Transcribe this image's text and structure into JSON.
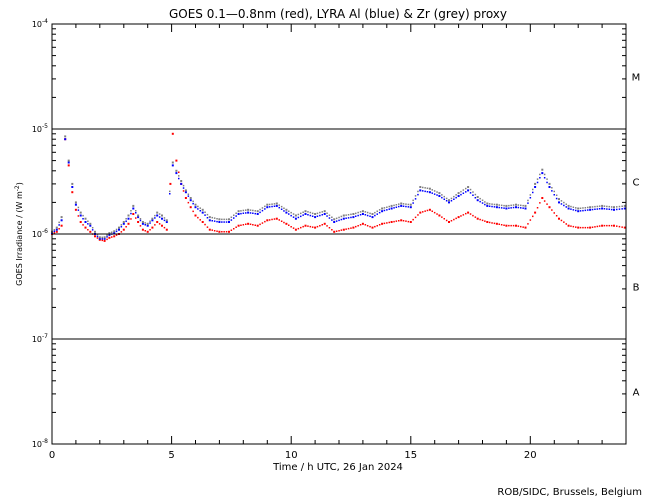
{
  "chart_data": {
    "type": "scatter",
    "title": "GOES 0.1—0.8nm (red), LYRA Al (blue) & Zr (grey) proxy",
    "xlabel": "Time / h UTC, 26 Jan 2024",
    "ylabel": "GOES Irradiance / (W m⁻²)",
    "xlim": [
      0,
      24
    ],
    "ylim": [
      1e-08,
      0.0001
    ],
    "yscale": "log",
    "xticks": [
      0,
      5,
      10,
      15,
      20
    ],
    "yticks": [
      {
        "value": 1e-08,
        "base": "10",
        "exp": "-8"
      },
      {
        "value": 1e-07,
        "base": "10",
        "exp": "-7"
      },
      {
        "value": 1e-06,
        "base": "10",
        "exp": "-6"
      },
      {
        "value": 1e-05,
        "base": "10",
        "exp": "-5"
      },
      {
        "value": 0.0001,
        "base": "10",
        "exp": "-4"
      }
    ],
    "class_lines": [
      1e-07,
      1e-06,
      1e-05
    ],
    "flare_classes": [
      {
        "label": "A",
        "value": 3.16e-08
      },
      {
        "label": "B",
        "value": 3.16e-07
      },
      {
        "label": "C",
        "value": 3.16e-06
      },
      {
        "label": "M",
        "value": 3.16e-05
      }
    ],
    "credit": "ROB/SIDC, Brussels, Belgium",
    "series": [
      {
        "color": "#ff0000",
        "points": [
          [
            0.0,
            1e-06
          ],
          [
            0.2,
            1.05e-06
          ],
          [
            0.4,
            1.2e-06
          ],
          [
            0.55,
            8e-06
          ],
          [
            0.7,
            4.5e-06
          ],
          [
            0.85,
            2.5e-06
          ],
          [
            1.0,
            1.7e-06
          ],
          [
            1.2,
            1.3e-06
          ],
          [
            1.4,
            1.15e-06
          ],
          [
            1.6,
            1.05e-06
          ],
          [
            1.8,
            9.5e-07
          ],
          [
            2.0,
            8.8e-07
          ],
          [
            2.2,
            8.6e-07
          ],
          [
            2.4,
            9.2e-07
          ],
          [
            2.6,
            9.5e-07
          ],
          [
            2.8,
            1e-06
          ],
          [
            3.0,
            1.1e-06
          ],
          [
            3.2,
            1.25e-06
          ],
          [
            3.4,
            1.55e-06
          ],
          [
            3.6,
            1.3e-06
          ],
          [
            3.8,
            1.1e-06
          ],
          [
            4.0,
            1.05e-06
          ],
          [
            4.2,
            1.15e-06
          ],
          [
            4.4,
            1.3e-06
          ],
          [
            4.6,
            1.2e-06
          ],
          [
            4.8,
            1.1e-06
          ],
          [
            4.95,
            3e-06
          ],
          [
            5.05,
            9e-06
          ],
          [
            5.2,
            5e-06
          ],
          [
            5.4,
            3e-06
          ],
          [
            5.6,
            2.2e-06
          ],
          [
            5.8,
            1.8e-06
          ],
          [
            6.0,
            1.5e-06
          ],
          [
            6.3,
            1.3e-06
          ],
          [
            6.6,
            1.1e-06
          ],
          [
            7.0,
            1.05e-06
          ],
          [
            7.4,
            1.05e-06
          ],
          [
            7.8,
            1.2e-06
          ],
          [
            8.2,
            1.25e-06
          ],
          [
            8.6,
            1.2e-06
          ],
          [
            9.0,
            1.35e-06
          ],
          [
            9.4,
            1.4e-06
          ],
          [
            9.8,
            1.25e-06
          ],
          [
            10.2,
            1.1e-06
          ],
          [
            10.6,
            1.2e-06
          ],
          [
            11.0,
            1.15e-06
          ],
          [
            11.4,
            1.25e-06
          ],
          [
            11.8,
            1.05e-06
          ],
          [
            12.2,
            1.1e-06
          ],
          [
            12.6,
            1.15e-06
          ],
          [
            13.0,
            1.25e-06
          ],
          [
            13.4,
            1.15e-06
          ],
          [
            13.8,
            1.25e-06
          ],
          [
            14.2,
            1.3e-06
          ],
          [
            14.6,
            1.35e-06
          ],
          [
            15.0,
            1.3e-06
          ],
          [
            15.4,
            1.6e-06
          ],
          [
            15.8,
            1.7e-06
          ],
          [
            16.2,
            1.5e-06
          ],
          [
            16.6,
            1.3e-06
          ],
          [
            17.0,
            1.45e-06
          ],
          [
            17.4,
            1.6e-06
          ],
          [
            17.8,
            1.4e-06
          ],
          [
            18.2,
            1.3e-06
          ],
          [
            18.6,
            1.25e-06
          ],
          [
            19.0,
            1.2e-06
          ],
          [
            19.4,
            1.2e-06
          ],
          [
            19.8,
            1.15e-06
          ],
          [
            20.2,
            1.6e-06
          ],
          [
            20.5,
            2.2e-06
          ],
          [
            20.8,
            1.8e-06
          ],
          [
            21.2,
            1.4e-06
          ],
          [
            21.6,
            1.2e-06
          ],
          [
            22.0,
            1.15e-06
          ],
          [
            22.5,
            1.15e-06
          ],
          [
            23.0,
            1.2e-06
          ],
          [
            23.5,
            1.2e-06
          ],
          [
            23.95,
            1.15e-06
          ]
        ]
      },
      {
        "color": "#0000ff",
        "points": [
          [
            0.0,
            1.02e-06
          ],
          [
            0.2,
            1.1e-06
          ],
          [
            0.4,
            1.35e-06
          ],
          [
            0.55,
            8e-06
          ],
          [
            0.7,
            4.8e-06
          ],
          [
            0.85,
            2.8e-06
          ],
          [
            1.0,
            1.9e-06
          ],
          [
            1.2,
            1.5e-06
          ],
          [
            1.4,
            1.3e-06
          ],
          [
            1.6,
            1.2e-06
          ],
          [
            1.8,
            1e-06
          ],
          [
            2.0,
            9e-07
          ],
          [
            2.2,
            9e-07
          ],
          [
            2.4,
            9.8e-07
          ],
          [
            2.6,
            1.02e-06
          ],
          [
            2.8,
            1.1e-06
          ],
          [
            3.0,
            1.25e-06
          ],
          [
            3.2,
            1.4e-06
          ],
          [
            3.4,
            1.75e-06
          ],
          [
            3.6,
            1.45e-06
          ],
          [
            3.8,
            1.25e-06
          ],
          [
            4.0,
            1.2e-06
          ],
          [
            4.2,
            1.35e-06
          ],
          [
            4.4,
            1.5e-06
          ],
          [
            4.6,
            1.4e-06
          ],
          [
            4.8,
            1.3e-06
          ],
          [
            5.05,
            4.5e-06
          ],
          [
            5.2,
            3.8e-06
          ],
          [
            5.4,
            3e-06
          ],
          [
            5.6,
            2.5e-06
          ],
          [
            5.8,
            2.1e-06
          ],
          [
            6.0,
            1.8e-06
          ],
          [
            6.3,
            1.6e-06
          ],
          [
            6.6,
            1.35e-06
          ],
          [
            7.0,
            1.3e-06
          ],
          [
            7.4,
            1.3e-06
          ],
          [
            7.8,
            1.55e-06
          ],
          [
            8.2,
            1.6e-06
          ],
          [
            8.6,
            1.55e-06
          ],
          [
            9.0,
            1.8e-06
          ],
          [
            9.4,
            1.85e-06
          ],
          [
            9.8,
            1.6e-06
          ],
          [
            10.2,
            1.4e-06
          ],
          [
            10.6,
            1.55e-06
          ],
          [
            11.0,
            1.45e-06
          ],
          [
            11.4,
            1.55e-06
          ],
          [
            11.8,
            1.3e-06
          ],
          [
            12.2,
            1.4e-06
          ],
          [
            12.6,
            1.45e-06
          ],
          [
            13.0,
            1.55e-06
          ],
          [
            13.4,
            1.45e-06
          ],
          [
            13.8,
            1.65e-06
          ],
          [
            14.2,
            1.75e-06
          ],
          [
            14.6,
            1.85e-06
          ],
          [
            15.0,
            1.8e-06
          ],
          [
            15.4,
            2.6e-06
          ],
          [
            15.8,
            2.5e-06
          ],
          [
            16.2,
            2.3e-06
          ],
          [
            16.6,
            2e-06
          ],
          [
            17.0,
            2.3e-06
          ],
          [
            17.4,
            2.6e-06
          ],
          [
            17.8,
            2.1e-06
          ],
          [
            18.2,
            1.85e-06
          ],
          [
            18.6,
            1.8e-06
          ],
          [
            19.0,
            1.75e-06
          ],
          [
            19.4,
            1.8e-06
          ],
          [
            19.8,
            1.75e-06
          ],
          [
            20.2,
            2.8e-06
          ],
          [
            20.5,
            3.8e-06
          ],
          [
            20.8,
            2.8e-06
          ],
          [
            21.2,
            2e-06
          ],
          [
            21.6,
            1.75e-06
          ],
          [
            22.0,
            1.65e-06
          ],
          [
            22.5,
            1.7e-06
          ],
          [
            23.0,
            1.75e-06
          ],
          [
            23.5,
            1.7e-06
          ],
          [
            23.95,
            1.75e-06
          ]
        ]
      },
      {
        "color": "#808080",
        "points": [
          [
            0.0,
            1.05e-06
          ],
          [
            0.2,
            1.15e-06
          ],
          [
            0.4,
            1.45e-06
          ],
          [
            0.55,
            8.5e-06
          ],
          [
            0.7,
            5e-06
          ],
          [
            0.85,
            3e-06
          ],
          [
            1.0,
            2e-06
          ],
          [
            1.2,
            1.6e-06
          ],
          [
            1.4,
            1.4e-06
          ],
          [
            1.6,
            1.25e-06
          ],
          [
            1.8,
            1.05e-06
          ],
          [
            2.0,
            9.3e-07
          ],
          [
            2.2,
            9.3e-07
          ],
          [
            2.4,
            1.02e-06
          ],
          [
            2.6,
            1.06e-06
          ],
          [
            2.8,
            1.15e-06
          ],
          [
            3.0,
            1.3e-06
          ],
          [
            3.2,
            1.5e-06
          ],
          [
            3.4,
            1.85e-06
          ],
          [
            3.6,
            1.5e-06
          ],
          [
            3.8,
            1.3e-06
          ],
          [
            4.0,
            1.25e-06
          ],
          [
            4.2,
            1.4e-06
          ],
          [
            4.4,
            1.6e-06
          ],
          [
            4.6,
            1.5e-06
          ],
          [
            4.8,
            1.35e-06
          ],
          [
            5.05,
            4.8e-06
          ],
          [
            5.2,
            4e-06
          ],
          [
            5.4,
            3.2e-06
          ],
          [
            5.6,
            2.6e-06
          ],
          [
            5.8,
            2.2e-06
          ],
          [
            6.0,
            1.9e-06
          ],
          [
            6.3,
            1.7e-06
          ],
          [
            6.6,
            1.45e-06
          ],
          [
            7.0,
            1.38e-06
          ],
          [
            7.4,
            1.38e-06
          ],
          [
            7.8,
            1.65e-06
          ],
          [
            8.2,
            1.7e-06
          ],
          [
            8.6,
            1.65e-06
          ],
          [
            9.0,
            1.9e-06
          ],
          [
            9.4,
            1.95e-06
          ],
          [
            9.8,
            1.7e-06
          ],
          [
            10.2,
            1.5e-06
          ],
          [
            10.6,
            1.65e-06
          ],
          [
            11.0,
            1.55e-06
          ],
          [
            11.4,
            1.65e-06
          ],
          [
            11.8,
            1.38e-06
          ],
          [
            12.2,
            1.5e-06
          ],
          [
            12.6,
            1.55e-06
          ],
          [
            13.0,
            1.65e-06
          ],
          [
            13.4,
            1.55e-06
          ],
          [
            13.8,
            1.75e-06
          ],
          [
            14.2,
            1.85e-06
          ],
          [
            14.6,
            1.95e-06
          ],
          [
            15.0,
            1.9e-06
          ],
          [
            15.4,
            2.8e-06
          ],
          [
            15.8,
            2.7e-06
          ],
          [
            16.2,
            2.45e-06
          ],
          [
            16.6,
            2.1e-06
          ],
          [
            17.0,
            2.45e-06
          ],
          [
            17.4,
            2.8e-06
          ],
          [
            17.8,
            2.25e-06
          ],
          [
            18.2,
            1.95e-06
          ],
          [
            18.6,
            1.9e-06
          ],
          [
            19.0,
            1.85e-06
          ],
          [
            19.4,
            1.9e-06
          ],
          [
            19.8,
            1.85e-06
          ],
          [
            20.2,
            3e-06
          ],
          [
            20.5,
            4.1e-06
          ],
          [
            20.8,
            3e-06
          ],
          [
            21.2,
            2.15e-06
          ],
          [
            21.6,
            1.85e-06
          ],
          [
            22.0,
            1.75e-06
          ],
          [
            22.5,
            1.8e-06
          ],
          [
            23.0,
            1.85e-06
          ],
          [
            23.5,
            1.8e-06
          ],
          [
            23.95,
            1.85e-06
          ]
        ]
      }
    ]
  }
}
